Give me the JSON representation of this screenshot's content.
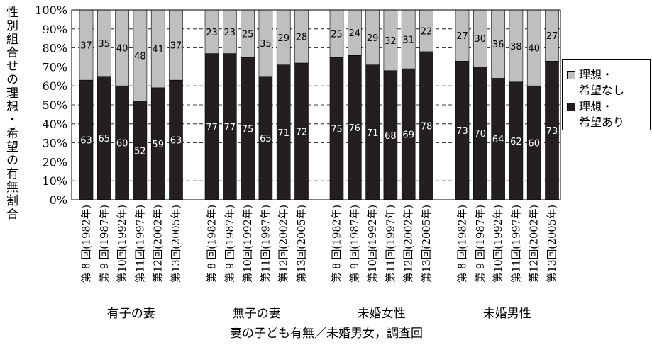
{
  "chart_data": {
    "type": "bar",
    "stacked": true,
    "ylabel": "性別組合せの理想・希望の有無割合",
    "xlabel": "妻の子ども有無／未婚男女，調査回",
    "ylim": [
      0,
      100
    ],
    "y_ticks": [
      "0%",
      "10%",
      "20%",
      "30%",
      "40%",
      "50%",
      "60%",
      "70%",
      "80%",
      "90%",
      "100%"
    ],
    "y_tick_values": [
      0,
      10,
      20,
      30,
      40,
      50,
      60,
      70,
      80,
      90,
      100
    ],
    "grid": "dashed horizontal",
    "legend_position": "right",
    "colors": {
      "top": "#bfbfbf",
      "bottom": "#231f20",
      "frame": "#000000"
    },
    "series": [
      {
        "name": "理想・希望なし",
        "name_lines": [
          "理想・",
          "希望なし"
        ],
        "color": "#bfbfbf"
      },
      {
        "name": "理想・希望あり",
        "name_lines": [
          "理想・",
          "希望あり"
        ],
        "color": "#231f20"
      }
    ],
    "groups": [
      {
        "name": "有子の妻",
        "categories": [
          "第 8 回(1982年)",
          "第 9 回(1987年)",
          "第10回(1992年)",
          "第11回(1997年)",
          "第12回(2002年)",
          "第13回(2005年)"
        ],
        "with_ideal": [
          63,
          65,
          60,
          52,
          59,
          63
        ],
        "without_ideal": [
          37,
          35,
          40,
          48,
          41,
          37
        ]
      },
      {
        "name": "無子の妻",
        "categories": [
          "第 8 回(1982年)",
          "第 9 回(1987年)",
          "第10回(1992年)",
          "第11回(1997年)",
          "第12回(2002年)",
          "第13回(2005年)"
        ],
        "with_ideal": [
          77,
          77,
          75,
          65,
          71,
          72
        ],
        "without_ideal": [
          23,
          23,
          25,
          35,
          29,
          28
        ]
      },
      {
        "name": "未婚女性",
        "categories": [
          "第 8 回(1982年)",
          "第 9 回(1987年)",
          "第10回(1992年)",
          "第11回(1997年)",
          "第12回(2002年)",
          "第13回(2005年)"
        ],
        "with_ideal": [
          75,
          76,
          71,
          68,
          69,
          78
        ],
        "without_ideal": [
          25,
          24,
          29,
          32,
          31,
          22
        ]
      },
      {
        "name": "未婚男性",
        "categories": [
          "第 8 回(1982年)",
          "第 9 回(1987年)",
          "第10回(1992年)",
          "第11回(1997年)",
          "第12回(2002年)",
          "第13回(2005年)"
        ],
        "with_ideal": [
          73,
          70,
          64,
          62,
          60,
          73
        ],
        "without_ideal": [
          27,
          30,
          36,
          38,
          40,
          27
        ]
      }
    ]
  }
}
